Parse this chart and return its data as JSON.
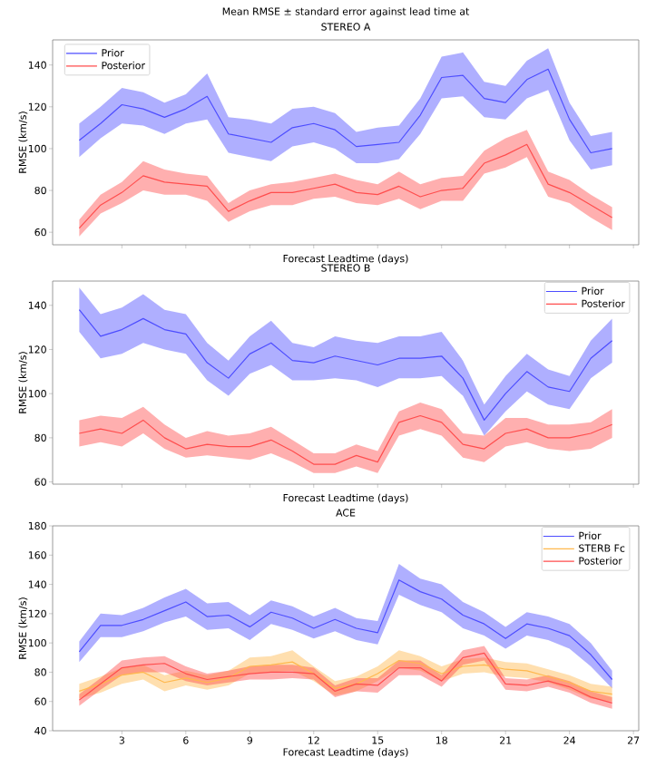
{
  "chart_data": [
    {
      "type": "line",
      "title": "Mean RMSE ± standard error against lead time at",
      "subtitle": "STEREO A",
      "xlabel": "Forecast Leadtime (days)",
      "ylabel": "RMSE (km/s)",
      "x": [
        1,
        2,
        3,
        4,
        5,
        6,
        7,
        8,
        9,
        10,
        11,
        12,
        13,
        14,
        15,
        16,
        17,
        18,
        19,
        20,
        21,
        22,
        23,
        24,
        25,
        26
      ],
      "series": [
        {
          "name": "Prior",
          "color": "#4d4dff",
          "values": [
            104,
            112,
            121,
            119,
            115,
            119,
            125,
            107,
            105,
            103,
            110,
            112,
            109,
            101,
            102,
            103,
            116,
            134,
            135,
            124,
            122,
            133,
            138,
            114,
            98,
            100
          ],
          "lower": [
            96,
            105,
            112,
            111,
            107,
            112,
            114,
            98,
            96,
            94,
            101,
            103,
            100,
            93,
            93,
            95,
            107,
            124,
            125,
            115,
            114,
            124,
            128,
            104,
            90,
            92
          ],
          "upper": [
            112,
            120,
            129,
            127,
            122,
            126,
            136,
            115,
            114,
            112,
            119,
            120,
            117,
            108,
            110,
            111,
            124,
            144,
            146,
            132,
            130,
            142,
            148,
            122,
            106,
            108
          ]
        },
        {
          "name": "Posterior",
          "color": "#ff4d4d",
          "values": [
            62,
            73,
            79,
            87,
            84,
            83,
            82,
            70,
            75,
            79,
            79,
            81,
            83,
            79,
            78,
            82,
            77,
            80,
            81,
            93,
            97,
            102,
            83,
            79,
            73,
            67
          ],
          "lower": [
            58,
            69,
            74,
            80,
            78,
            78,
            75,
            65,
            70,
            73,
            73,
            76,
            77,
            74,
            73,
            76,
            71,
            75,
            75,
            88,
            91,
            96,
            77,
            74,
            67,
            61
          ],
          "upper": [
            66,
            78,
            84,
            94,
            90,
            88,
            87,
            74,
            80,
            83,
            84,
            86,
            88,
            85,
            83,
            89,
            83,
            86,
            87,
            99,
            105,
            109,
            89,
            85,
            78,
            72
          ]
        }
      ],
      "xlim": [
        -0.25,
        27.25
      ],
      "xticks": [
        3,
        6,
        9,
        12,
        15,
        18,
        21,
        24,
        27
      ],
      "ylim": [
        54,
        152
      ],
      "yticks": [
        60,
        80,
        100,
        120,
        140
      ],
      "tick_labels": "y",
      "legend": "top left",
      "grid": false
    },
    {
      "type": "line",
      "title": "STEREO B",
      "xlabel": "Forecast Leadtime (days)",
      "ylabel": "RMSE (km/s)",
      "x": [
        1,
        2,
        3,
        4,
        5,
        6,
        7,
        8,
        9,
        10,
        11,
        12,
        13,
        14,
        15,
        16,
        17,
        18,
        19,
        20,
        21,
        22,
        23,
        24,
        25,
        26
      ],
      "series": [
        {
          "name": "Prior",
          "color": "#4d4dff",
          "values": [
            138,
            126,
            129,
            134,
            129,
            127,
            114,
            107,
            118,
            123,
            115,
            114,
            117,
            115,
            113,
            116,
            116,
            117,
            107,
            88,
            100,
            110,
            103,
            101,
            116,
            124
          ],
          "lower": [
            128,
            116,
            118,
            123,
            120,
            118,
            106,
            99,
            109,
            113,
            106,
            106,
            107,
            106,
            103,
            107,
            107,
            108,
            99,
            81,
            92,
            101,
            95,
            93,
            107,
            114
          ],
          "upper": [
            148,
            136,
            139,
            145,
            138,
            136,
            123,
            115,
            126,
            133,
            123,
            121,
            126,
            124,
            123,
            126,
            126,
            128,
            115,
            95,
            108,
            118,
            111,
            108,
            124,
            134
          ]
        },
        {
          "name": "Posterior",
          "color": "#ff4d4d",
          "values": [
            82,
            84,
            82,
            88,
            80,
            75,
            77,
            76,
            76,
            79,
            74,
            68,
            68,
            72,
            69,
            87,
            90,
            87,
            77,
            75,
            82,
            84,
            80,
            80,
            82,
            86
          ],
          "lower": [
            76,
            78,
            76,
            82,
            75,
            71,
            72,
            71,
            70,
            73,
            69,
            64,
            64,
            67,
            64,
            81,
            84,
            81,
            71,
            69,
            76,
            78,
            75,
            74,
            75,
            80
          ],
          "upper": [
            88,
            90,
            89,
            94,
            86,
            80,
            83,
            81,
            82,
            85,
            79,
            73,
            73,
            77,
            74,
            92,
            96,
            93,
            82,
            81,
            89,
            89,
            86,
            86,
            87,
            93
          ]
        }
      ],
      "xlim": [
        -0.25,
        27.25
      ],
      "xticks": [
        3,
        6,
        9,
        12,
        15,
        18,
        21,
        24,
        27
      ],
      "ylim": [
        59,
        151
      ],
      "yticks": [
        60,
        80,
        100,
        120,
        140
      ],
      "tick_labels": "y",
      "legend": "top right",
      "grid": false
    },
    {
      "type": "line",
      "title": "ACE",
      "xlabel": "Forecast Leadtime (days)",
      "ylabel": "RMSE (km/s)",
      "x": [
        1,
        2,
        3,
        4,
        5,
        6,
        7,
        8,
        9,
        10,
        11,
        12,
        13,
        14,
        15,
        16,
        17,
        18,
        19,
        20,
        21,
        22,
        23,
        24,
        25,
        26
      ],
      "series": [
        {
          "name": "Prior",
          "color": "#4d4dff",
          "values": [
            94,
            112,
            112,
            116,
            122,
            128,
            118,
            119,
            111,
            121,
            117,
            110,
            116,
            110,
            107,
            143,
            135,
            130,
            119,
            113,
            103,
            113,
            110,
            105,
            92,
            75
          ],
          "lower": [
            87,
            104,
            104,
            108,
            114,
            118,
            109,
            110,
            102,
            113,
            109,
            103,
            108,
            102,
            99,
            133,
            126,
            121,
            110,
            105,
            96,
            105,
            102,
            96,
            84,
            69
          ],
          "upper": [
            101,
            120,
            119,
            124,
            131,
            137,
            127,
            128,
            119,
            129,
            125,
            118,
            124,
            117,
            115,
            154,
            144,
            140,
            128,
            121,
            111,
            121,
            118,
            113,
            100,
            81
          ]
        },
        {
          "name": "STERB Fc",
          "color": "#ffb84d",
          "values": [
            67,
            72,
            78,
            80,
            73,
            76,
            73,
            76,
            84,
            85,
            87,
            79,
            69,
            72,
            79,
            88,
            86,
            79,
            84,
            85,
            82,
            81,
            77,
            73,
            67,
            65
          ],
          "lower": [
            62,
            66,
            72,
            75,
            67,
            71,
            68,
            71,
            79,
            80,
            81,
            74,
            64,
            67,
            74,
            83,
            81,
            74,
            79,
            80,
            77,
            76,
            73,
            68,
            62,
            60
          ],
          "upper": [
            72,
            77,
            83,
            85,
            78,
            81,
            78,
            81,
            90,
            91,
            95,
            84,
            74,
            77,
            84,
            95,
            91,
            84,
            89,
            90,
            87,
            86,
            82,
            78,
            72,
            70
          ]
        },
        {
          "name": "Posterior",
          "color": "#ff4d4d",
          "values": [
            61,
            72,
            83,
            85,
            86,
            79,
            75,
            77,
            79,
            80,
            80,
            79,
            67,
            72,
            71,
            83,
            83,
            74,
            90,
            93,
            72,
            71,
            74,
            70,
            63,
            59
          ],
          "lower": [
            57,
            68,
            78,
            80,
            80,
            74,
            71,
            73,
            75,
            75,
            76,
            75,
            63,
            67,
            66,
            78,
            78,
            70,
            85,
            88,
            68,
            67,
            70,
            66,
            59,
            55
          ],
          "upper": [
            65,
            76,
            88,
            90,
            91,
            84,
            79,
            81,
            84,
            85,
            85,
            83,
            71,
            76,
            76,
            88,
            88,
            78,
            95,
            98,
            76,
            75,
            78,
            74,
            67,
            63
          ]
        }
      ],
      "xlim": [
        -0.25,
        27.25
      ],
      "xticks": [
        3,
        6,
        9,
        12,
        15,
        18,
        21,
        24,
        27
      ],
      "ylim": [
        40,
        180
      ],
      "yticks": [
        40,
        60,
        80,
        100,
        120,
        140,
        160,
        180
      ],
      "legend": "top right",
      "grid": false
    }
  ]
}
